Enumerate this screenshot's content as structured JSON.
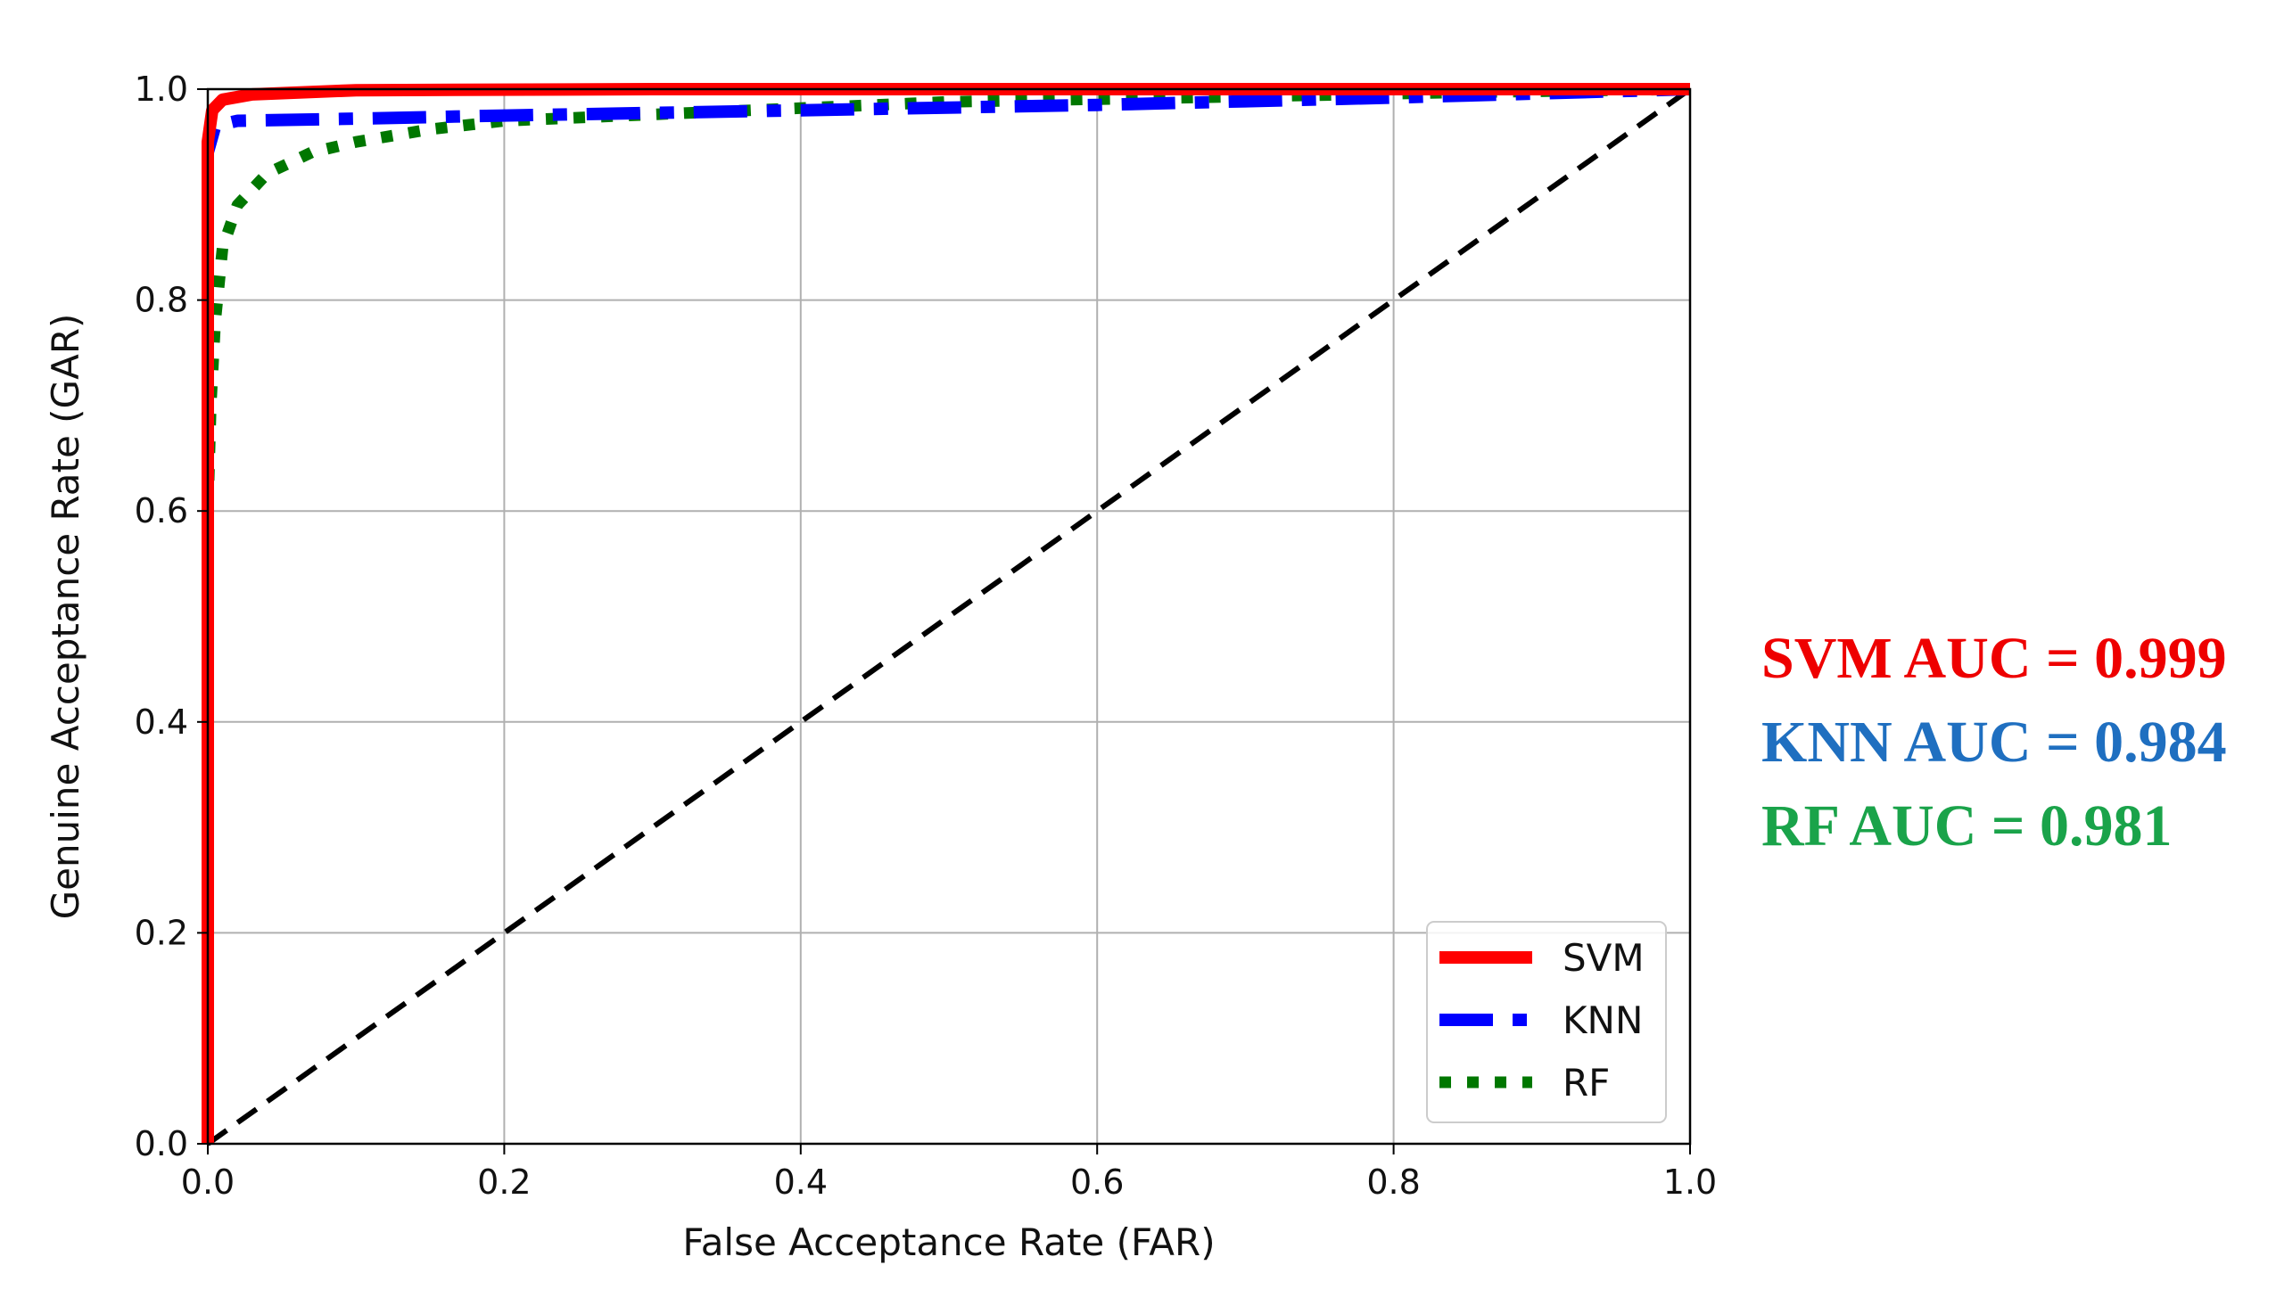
{
  "chart_data": {
    "type": "line",
    "title": "",
    "xlabel": "False Acceptance Rate (FAR)",
    "ylabel": "Genuine Acceptance Rate (GAR)",
    "xlim": [
      0.0,
      1.0
    ],
    "ylim": [
      0.0,
      1.0
    ],
    "xticks": [
      "0.0",
      "0.2",
      "0.4",
      "0.6",
      "0.8",
      "1.0"
    ],
    "yticks": [
      "0.0",
      "0.2",
      "0.4",
      "0.6",
      "0.8",
      "1.0"
    ],
    "grid": true,
    "legend_position": "lower right",
    "series": [
      {
        "name": "SVM",
        "color": "#ff0000",
        "style": "solid",
        "x": [
          0.0,
          0.0,
          0.003,
          0.01,
          0.03,
          0.1,
          0.3,
          0.6,
          1.0
        ],
        "y": [
          0.0,
          0.95,
          0.98,
          0.99,
          0.995,
          0.999,
          1.0,
          1.0,
          1.0
        ]
      },
      {
        "name": "KNN",
        "color": "#0000ff",
        "style": "dashdot",
        "x": [
          0.0,
          0.0,
          0.0,
          0.005,
          0.02,
          0.1,
          0.2,
          0.4,
          0.6,
          0.8,
          1.0
        ],
        "y": [
          0.0,
          0.84,
          0.94,
          0.965,
          0.97,
          0.972,
          0.975,
          0.98,
          0.985,
          0.992,
          1.0
        ]
      },
      {
        "name": "RF",
        "color": "#007700",
        "style": "dotted",
        "x": [
          0.0,
          0.0,
          0.002,
          0.005,
          0.01,
          0.02,
          0.04,
          0.07,
          0.1,
          0.15,
          0.2,
          0.3,
          0.4,
          0.5,
          0.7,
          0.85,
          1.0
        ],
        "y": [
          0.0,
          0.6,
          0.7,
          0.78,
          0.85,
          0.89,
          0.92,
          0.94,
          0.95,
          0.962,
          0.97,
          0.976,
          0.982,
          0.988,
          0.993,
          0.997,
          1.0
        ]
      },
      {
        "name": "",
        "color": "#000000",
        "style": "dashed",
        "x": [
          0.0,
          1.0
        ],
        "y": [
          0.0,
          1.0
        ]
      }
    ],
    "legend": [
      {
        "label": "SVM",
        "color": "#ff0000",
        "style": "solid"
      },
      {
        "label": "KNN",
        "color": "#0000ff",
        "style": "dashdot"
      },
      {
        "label": "RF",
        "color": "#007700",
        "style": "dotted"
      }
    ],
    "annotations": [
      {
        "text": "SVM AUC = 0.999",
        "color": "#ee0000"
      },
      {
        "text": "KNN AUC = 0.984",
        "color": "#1f6fc0"
      },
      {
        "text": "RF AUC = 0.981",
        "color": "#1aa34a"
      }
    ]
  }
}
